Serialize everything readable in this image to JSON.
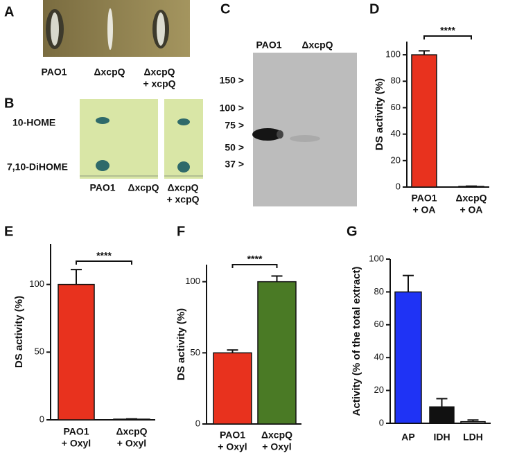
{
  "panels": {
    "A": {
      "label": "A",
      "samples": [
        [
          "PAO1"
        ],
        [
          "ΔxcpQ"
        ],
        [
          "ΔxcpQ",
          "+ xcpQ"
        ]
      ]
    },
    "B": {
      "label": "B",
      "spots": [
        "10-HOME",
        "7,10-DiHOME"
      ],
      "samples": [
        [
          "PAO1"
        ],
        [
          "ΔxcpQ"
        ],
        [
          "ΔxcpQ",
          "+ xcpQ"
        ]
      ]
    },
    "C": {
      "label": "C",
      "lanes": [
        "PAO1",
        "ΔxcpQ"
      ],
      "markers": [
        "150 >",
        "100 >",
        "75 >",
        "50 >",
        "37 >"
      ]
    }
  },
  "chart_data": [
    {
      "type": "bar",
      "label": "D",
      "ylabel": "DS activity (%)",
      "categories": [
        [
          "PAO1",
          "+ OA"
        ],
        [
          "ΔxcpQ",
          "+ OA"
        ]
      ],
      "values": [
        100,
        0.5
      ],
      "errors": [
        3,
        0.2
      ],
      "colors": [
        "#e8321e",
        "#b0b0b0"
      ],
      "ylim": [
        0,
        110
      ],
      "yticks": [
        0,
        20,
        40,
        60,
        80,
        100
      ],
      "annotation": "****"
    },
    {
      "type": "bar",
      "label": "E",
      "ylabel": "DS activity (%)",
      "categories": [
        [
          "PAO1",
          "+ Oxyl"
        ],
        [
          "ΔxcpQ",
          "+ Oxyl"
        ]
      ],
      "values": [
        100,
        0.5
      ],
      "errors": [
        11,
        0.2
      ],
      "colors": [
        "#e8321e",
        "#b0b0b0"
      ],
      "ylim": [
        0,
        130
      ],
      "yticks": [
        0,
        50,
        100
      ],
      "annotation": "****"
    },
    {
      "type": "bar",
      "label": "F",
      "ylabel": "DS activity (%)",
      "categories": [
        [
          "PAO1",
          "+ Oxyl"
        ],
        [
          "ΔxcpQ",
          "+ Oxyl"
        ]
      ],
      "values": [
        50,
        100
      ],
      "errors": [
        2,
        4
      ],
      "colors": [
        "#e8321e",
        "#4a7a25"
      ],
      "ylim": [
        0,
        112
      ],
      "yticks": [
        0,
        50,
        100
      ],
      "annotation": "****"
    },
    {
      "type": "bar",
      "label": "G",
      "ylabel": "Activity (% of the total extract)",
      "categories": [
        [
          "AP"
        ],
        [
          "IDH"
        ],
        [
          "LDH"
        ]
      ],
      "values": [
        80,
        10,
        1
      ],
      "errors": [
        10,
        5,
        1
      ],
      "colors": [
        "#1f33f5",
        "#111111",
        "#b0b0b0"
      ],
      "ylim": [
        0,
        100
      ],
      "yticks": [
        0,
        20,
        40,
        60,
        80,
        100
      ]
    }
  ]
}
